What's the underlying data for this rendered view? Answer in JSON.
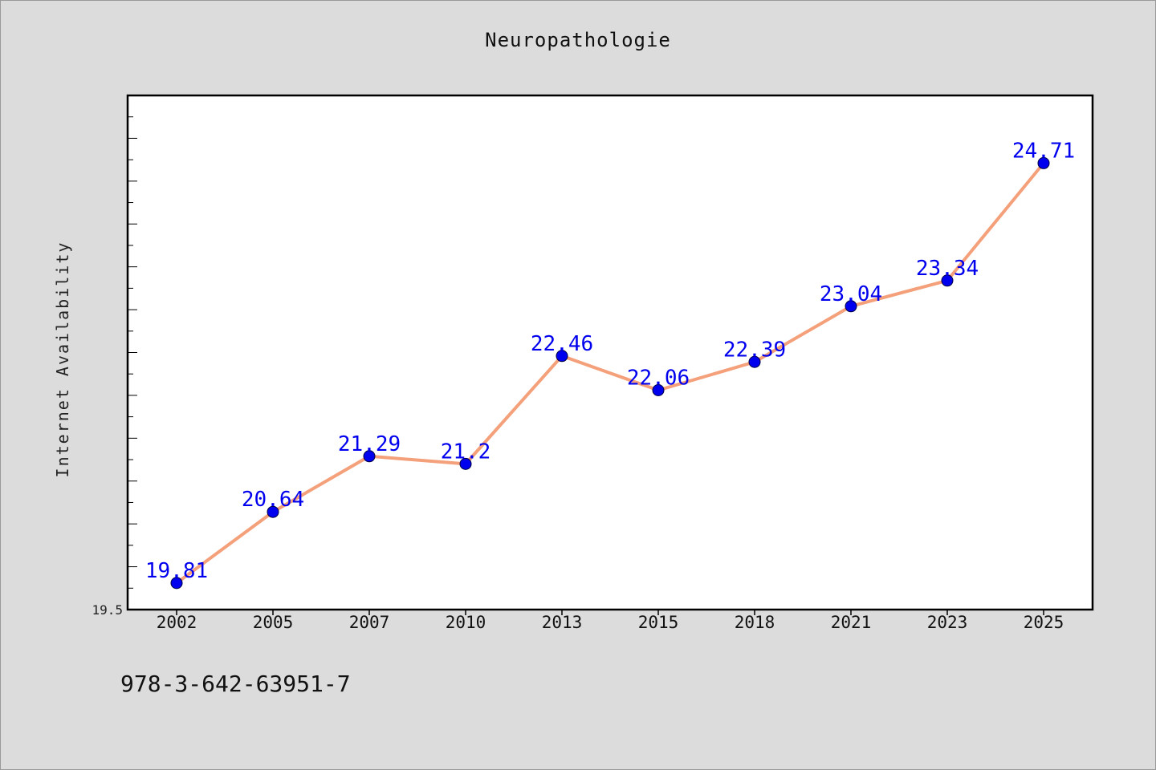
{
  "chart_data": {
    "type": "line",
    "title": "Neuropathologie",
    "xlabel": "",
    "ylabel": "Internet Availability",
    "categories": [
      "2002",
      "2005",
      "2007",
      "2010",
      "2013",
      "2015",
      "2018",
      "2021",
      "2023",
      "2025"
    ],
    "series": [
      {
        "values": [
          19.81,
          20.64,
          21.29,
          21.2,
          22.46,
          22.06,
          22.39,
          23.04,
          23.34,
          24.71
        ],
        "labels": [
          "19.81",
          "20.64",
          "21.29",
          "21.2",
          "22.46",
          "22.06",
          "22.39",
          "23.04",
          "23.34",
          "24.71"
        ]
      }
    ],
    "ylim": [
      19.5,
      25.5
    ],
    "y_tick_label": "19.5",
    "grid": false,
    "legend": "none",
    "colors": {
      "line": "#f4a07a",
      "marker": "#0000ee",
      "label": "#0000ee",
      "plot_bg": "#ffffff",
      "page_bg": "#dcdcdc"
    }
  },
  "footer": {
    "code": "978-3-642-63951-7"
  }
}
